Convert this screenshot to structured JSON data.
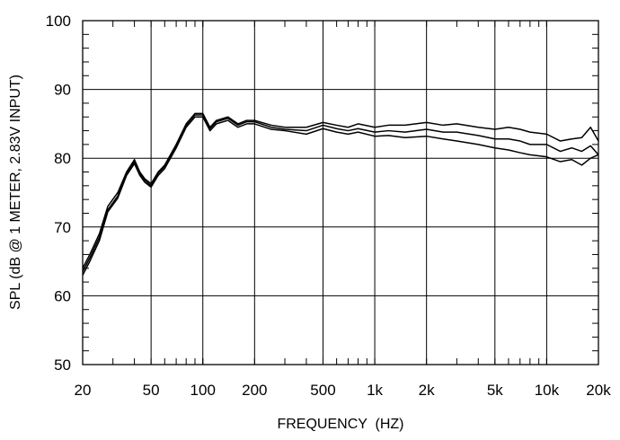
{
  "chart_data": {
    "type": "line",
    "title": "",
    "xlabel": "FREQUENCY  (HZ)",
    "ylabel": "SPL (dB @ 1 METER, 2.83V INPUT)",
    "xscale": "log",
    "xlim": [
      20,
      20000
    ],
    "ylim": [
      50,
      100
    ],
    "grid": true,
    "legend": "none",
    "line_color": "#000000",
    "x_ticks": [
      {
        "value": 20,
        "label": "20"
      },
      {
        "value": 50,
        "label": "50"
      },
      {
        "value": 100,
        "label": "100"
      },
      {
        "value": 200,
        "label": "200"
      },
      {
        "value": 500,
        "label": "500"
      },
      {
        "value": 1000,
        "label": "1k"
      },
      {
        "value": 2000,
        "label": "2k"
      },
      {
        "value": 5000,
        "label": "5k"
      },
      {
        "value": 10000,
        "label": "10k"
      },
      {
        "value": 20000,
        "label": "20k"
      }
    ],
    "y_ticks": [
      {
        "value": 50,
        "label": "50"
      },
      {
        "value": 60,
        "label": "60"
      },
      {
        "value": 70,
        "label": "70"
      },
      {
        "value": 80,
        "label": "80"
      },
      {
        "value": 90,
        "label": "90"
      },
      {
        "value": 100,
        "label": "100"
      }
    ],
    "x": [
      20,
      22,
      25,
      28,
      32,
      36,
      40,
      43,
      46,
      50,
      55,
      60,
      70,
      80,
      90,
      100,
      110,
      120,
      140,
      160,
      180,
      200,
      250,
      300,
      400,
      500,
      600,
      700,
      800,
      1000,
      1200,
      1500,
      2000,
      2500,
      3000,
      4000,
      5000,
      6000,
      7000,
      8000,
      10000,
      12000,
      14000,
      16000,
      18000,
      20000
    ],
    "series": [
      {
        "values": [
          64,
          66,
          69,
          73,
          75,
          78,
          79.8,
          78,
          77,
          76.3,
          78,
          79,
          82,
          85,
          86.5,
          86.5,
          84.5,
          85.5,
          86,
          85,
          85.5,
          85.5,
          84.8,
          84.5,
          84.5,
          85.2,
          84.8,
          84.5,
          85,
          84.5,
          84.8,
          84.8,
          85.2,
          84.8,
          85,
          84.5,
          84.2,
          84.5,
          84.2,
          83.8,
          83.5,
          82.5,
          82.8,
          83,
          84.5,
          82.5
        ]
      },
      {
        "values": [
          63.5,
          65.5,
          68.5,
          72.5,
          74.5,
          77.8,
          79.5,
          77.8,
          76.8,
          76,
          77.8,
          78.8,
          81.8,
          84.8,
          86.3,
          86.3,
          84.3,
          85.3,
          85.8,
          84.8,
          85.3,
          85.3,
          84.5,
          84.2,
          84,
          84.8,
          84.3,
          84,
          84.3,
          83.8,
          84,
          83.8,
          84.2,
          83.8,
          83.8,
          83.3,
          82.8,
          82.8,
          82.5,
          82,
          82,
          81,
          81.5,
          81,
          81.8,
          80.5
        ]
      },
      {
        "values": [
          63,
          65,
          68,
          72.2,
          74.2,
          77.5,
          79.2,
          77.5,
          76.5,
          75.8,
          77.5,
          78.5,
          81.5,
          84.5,
          86,
          86,
          84,
          85,
          85.5,
          84.5,
          85,
          85,
          84.2,
          84,
          83.5,
          84.3,
          83.8,
          83.5,
          83.8,
          83.2,
          83.3,
          83,
          83.2,
          82.8,
          82.5,
          82,
          81.5,
          81.2,
          80.8,
          80.5,
          80.2,
          79.5,
          79.8,
          79,
          80,
          80.5
        ]
      }
    ]
  }
}
